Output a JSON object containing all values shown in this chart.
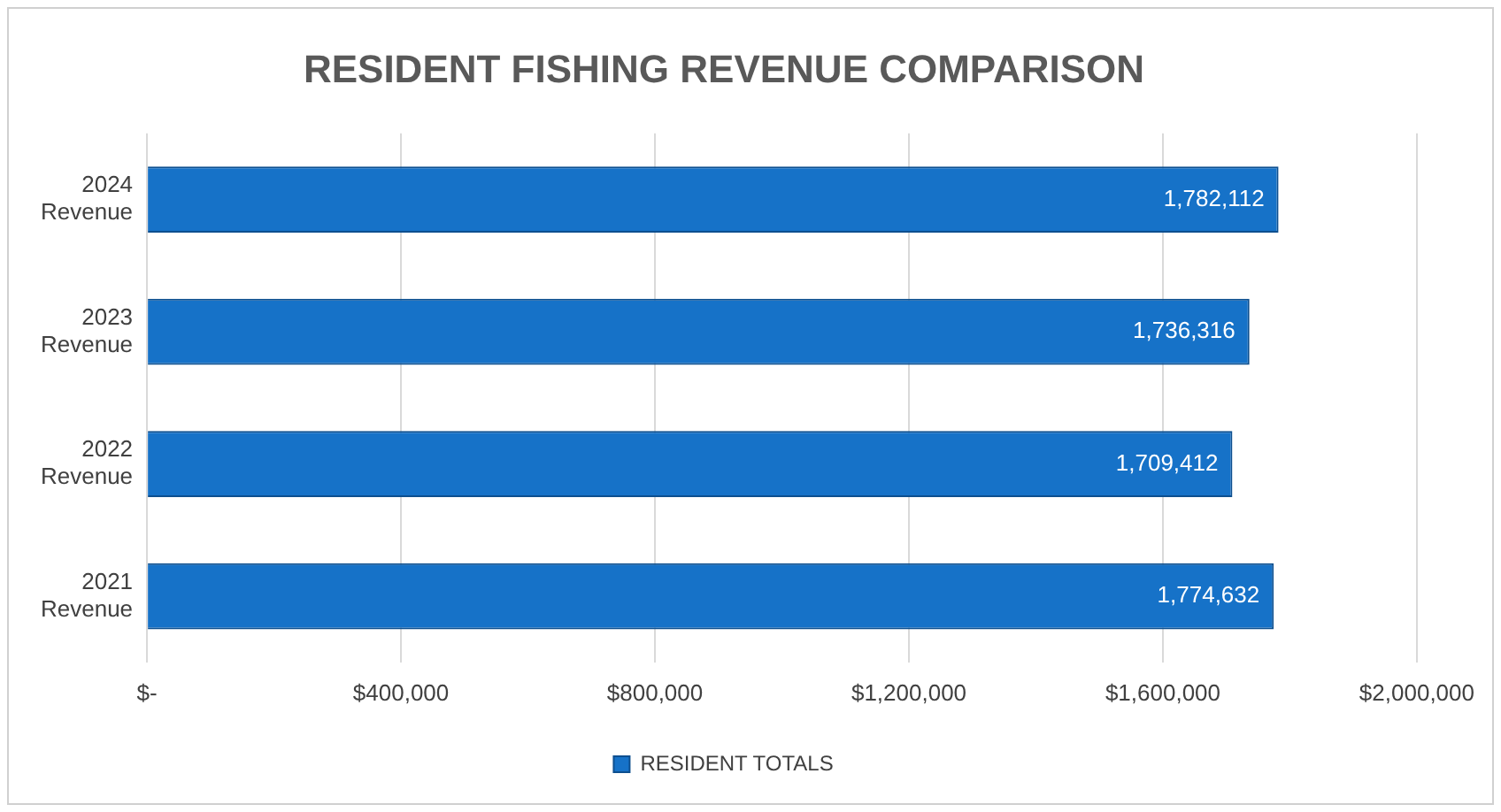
{
  "chart_data": {
    "type": "bar",
    "orientation": "horizontal",
    "title": "RESIDENT FISHING REVENUE COMPARISON",
    "categories": [
      "2024 Revenue",
      "2023 Revenue",
      "2022 Revenue",
      "2021 Revenue"
    ],
    "series": [
      {
        "name": "RESIDENT TOTALS",
        "color": "#1672c8",
        "values": [
          1782112,
          1736316,
          1709412,
          1774632
        ],
        "value_labels": [
          "1,782,112",
          "1,736,316",
          "1,709,412",
          "1,774,632"
        ]
      }
    ],
    "xlim": [
      0,
      2000000
    ],
    "xticks": [
      {
        "value": 0,
        "label": "$-"
      },
      {
        "value": 400000,
        "label": "$400,000"
      },
      {
        "value": 800000,
        "label": "$800,000"
      },
      {
        "value": 1200000,
        "label": "$1,200,000"
      },
      {
        "value": 1600000,
        "label": "$1,600,000"
      },
      {
        "value": 2000000,
        "label": "$2,000,000"
      }
    ],
    "grid": "x",
    "legend": "bottom"
  }
}
